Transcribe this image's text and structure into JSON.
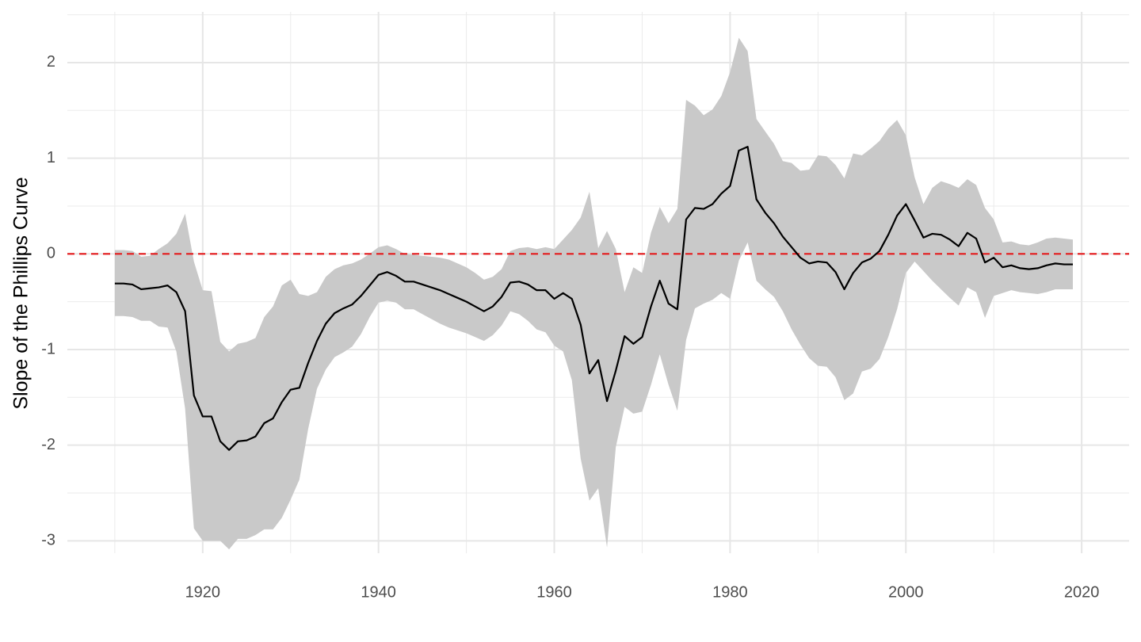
{
  "chart_data": {
    "type": "line",
    "y_label": "Slope of the Phillips Curve",
    "x": [
      1910,
      1911,
      1912,
      1913,
      1914,
      1915,
      1916,
      1917,
      1918,
      1919,
      1920,
      1921,
      1922,
      1923,
      1924,
      1925,
      1926,
      1927,
      1928,
      1929,
      1930,
      1931,
      1932,
      1933,
      1934,
      1935,
      1936,
      1937,
      1938,
      1939,
      1940,
      1941,
      1942,
      1943,
      1944,
      1945,
      1946,
      1947,
      1948,
      1949,
      1950,
      1951,
      1952,
      1953,
      1954,
      1955,
      1956,
      1957,
      1958,
      1959,
      1960,
      1961,
      1962,
      1963,
      1964,
      1965,
      1966,
      1967,
      1968,
      1969,
      1970,
      1971,
      1972,
      1973,
      1974,
      1975,
      1976,
      1977,
      1978,
      1979,
      1980,
      1981,
      1982,
      1983,
      1984,
      1985,
      1986,
      1987,
      1988,
      1989,
      1990,
      1991,
      1992,
      1993,
      1994,
      1995,
      1996,
      1997,
      1998,
      1999,
      2000,
      2001,
      2002,
      2003,
      2004,
      2005,
      2006,
      2007,
      2008,
      2009,
      2010,
      2011,
      2012,
      2013,
      2014,
      2015,
      2016,
      2017,
      2018,
      2019
    ],
    "values": [
      -0.31,
      -0.31,
      -0.32,
      -0.37,
      -0.36,
      -0.35,
      -0.33,
      -0.4,
      -0.6,
      -1.48,
      -1.7,
      -1.7,
      -1.96,
      -2.05,
      -1.96,
      -1.95,
      -1.91,
      -1.77,
      -1.72,
      -1.55,
      -1.42,
      -1.4,
      -1.14,
      -0.91,
      -0.73,
      -0.62,
      -0.57,
      -0.53,
      -0.44,
      -0.33,
      -0.22,
      -0.19,
      -0.23,
      -0.29,
      -0.29,
      -0.32,
      -0.35,
      -0.38,
      -0.42,
      -0.46,
      -0.5,
      -0.55,
      -0.6,
      -0.55,
      -0.45,
      -0.3,
      -0.29,
      -0.32,
      -0.38,
      -0.38,
      -0.47,
      -0.41,
      -0.47,
      -0.74,
      -1.25,
      -1.11,
      -1.54,
      -1.22,
      -0.86,
      -0.94,
      -0.87,
      -0.55,
      -0.28,
      -0.52,
      -0.58,
      0.36,
      0.48,
      0.47,
      0.52,
      0.63,
      0.71,
      1.08,
      1.12,
      0.57,
      0.43,
      0.32,
      0.18,
      0.07,
      -0.04,
      -0.1,
      -0.08,
      -0.09,
      -0.19,
      -0.37,
      -0.2,
      -0.09,
      -0.05,
      0.03,
      0.2,
      0.4,
      0.52,
      0.35,
      0.17,
      0.21,
      0.2,
      0.15,
      0.08,
      0.22,
      0.16,
      -0.09,
      -0.04,
      -0.14,
      -0.12,
      -0.15,
      -0.16,
      -0.15,
      -0.12,
      -0.1,
      -0.11,
      -0.11
    ],
    "upper": [
      0.04,
      0.04,
      0.03,
      -0.03,
      -0.02,
      0.05,
      0.11,
      0.21,
      0.42,
      -0.08,
      -0.38,
      -0.39,
      -0.92,
      -1.02,
      -0.94,
      -0.92,
      -0.88,
      -0.66,
      -0.55,
      -0.33,
      -0.27,
      -0.42,
      -0.44,
      -0.4,
      -0.24,
      -0.16,
      -0.12,
      -0.1,
      -0.06,
      0.0,
      0.07,
      0.09,
      0.05,
      0.0,
      -0.01,
      -0.02,
      -0.03,
      -0.04,
      -0.06,
      -0.1,
      -0.14,
      -0.2,
      -0.27,
      -0.24,
      -0.16,
      0.03,
      0.06,
      0.07,
      0.05,
      0.07,
      0.05,
      0.15,
      0.25,
      0.38,
      0.65,
      0.06,
      0.24,
      0.05,
      -0.4,
      -0.14,
      -0.2,
      0.22,
      0.49,
      0.32,
      0.47,
      1.61,
      1.55,
      1.45,
      1.51,
      1.65,
      1.9,
      2.26,
      2.12,
      1.41,
      1.28,
      1.15,
      0.97,
      0.95,
      0.87,
      0.88,
      1.03,
      1.02,
      0.93,
      0.79,
      1.05,
      1.03,
      1.1,
      1.18,
      1.31,
      1.4,
      1.24,
      0.8,
      0.52,
      0.69,
      0.76,
      0.73,
      0.69,
      0.78,
      0.72,
      0.48,
      0.36,
      0.12,
      0.13,
      0.1,
      0.09,
      0.12,
      0.16,
      0.17,
      0.16,
      0.15
    ],
    "lower": [
      -0.65,
      -0.65,
      -0.66,
      -0.7,
      -0.7,
      -0.76,
      -0.77,
      -1.02,
      -1.62,
      -2.87,
      -3.0,
      -3.0,
      -3.0,
      -3.09,
      -2.98,
      -2.98,
      -2.94,
      -2.88,
      -2.88,
      -2.76,
      -2.57,
      -2.36,
      -1.83,
      -1.41,
      -1.21,
      -1.08,
      -1.03,
      -0.97,
      -0.84,
      -0.66,
      -0.51,
      -0.49,
      -0.51,
      -0.58,
      -0.58,
      -0.63,
      -0.68,
      -0.73,
      -0.77,
      -0.8,
      -0.83,
      -0.87,
      -0.91,
      -0.85,
      -0.75,
      -0.6,
      -0.63,
      -0.7,
      -0.79,
      -0.82,
      -0.96,
      -1.02,
      -1.32,
      -2.14,
      -2.58,
      -2.45,
      -3.07,
      -2.02,
      -1.6,
      -1.67,
      -1.65,
      -1.37,
      -1.05,
      -1.37,
      -1.64,
      -0.9,
      -0.57,
      -0.52,
      -0.48,
      -0.41,
      -0.47,
      -0.07,
      0.12,
      -0.28,
      -0.37,
      -0.45,
      -0.6,
      -0.79,
      -0.95,
      -1.09,
      -1.17,
      -1.18,
      -1.29,
      -1.53,
      -1.46,
      -1.23,
      -1.2,
      -1.1,
      -0.87,
      -0.58,
      -0.2,
      -0.08,
      -0.18,
      -0.28,
      -0.37,
      -0.46,
      -0.54,
      -0.35,
      -0.4,
      -0.67,
      -0.44,
      -0.41,
      -0.38,
      -0.4,
      -0.41,
      -0.42,
      -0.4,
      -0.37,
      -0.37,
      -0.37
    ],
    "color": "#000000",
    "band_color": "#c9c9c9",
    "hline": {
      "value": 0,
      "color": "#e41a1c",
      "dashed": true
    },
    "xlim": [
      1904.6,
      2025.4
    ],
    "ylim": [
      -3.13,
      2.53
    ],
    "xticks": [
      1920,
      1940,
      1960,
      1980,
      2000,
      2020
    ],
    "yticks": [
      -3,
      -2,
      -1,
      0,
      1,
      2
    ],
    "x_minor_ticks": [
      1910,
      1930,
      1950,
      1970,
      1990,
      2010
    ],
    "y_minor_ticks": [
      -2.5,
      -1.5,
      -0.5,
      0.5,
      1.5,
      2.5
    ],
    "grid": true
  }
}
